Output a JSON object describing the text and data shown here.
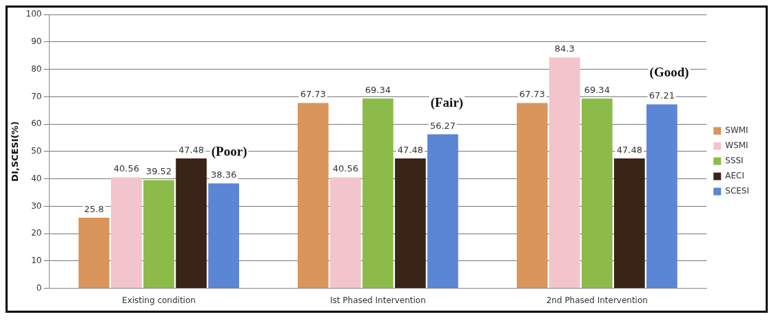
{
  "chart_data": {
    "type": "bar",
    "ylabel": "DI,SCESI(%)",
    "categories": [
      "Existing condition",
      "Ist Phased Intervention",
      "2nd Phased Intervention"
    ],
    "series": [
      {
        "name": "SWMI",
        "color": "#d9955a",
        "values": [
          25.8,
          67.73,
          67.73
        ]
      },
      {
        "name": "WSMI",
        "color": "#f2c4cc",
        "values": [
          40.56,
          40.56,
          84.3
        ]
      },
      {
        "name": "SSSI",
        "color": "#8dbb4a",
        "values": [
          39.52,
          69.34,
          69.34
        ]
      },
      {
        "name": "AECI",
        "color": "#3a2418",
        "values": [
          47.48,
          47.48,
          47.48
        ]
      },
      {
        "name": "SCESI",
        "color": "#5b86d6",
        "values": [
          38.36,
          56.27,
          67.21
        ]
      }
    ],
    "ylim": [
      0,
      100
    ],
    "yticks": [
      0,
      10,
      20,
      30,
      40,
      50,
      60,
      70,
      80,
      90,
      100
    ],
    "grid": "y",
    "legend": "right",
    "data_labels": true,
    "annotations": [
      "(Poor)",
      "(Fair)",
      "(Good)"
    ]
  }
}
